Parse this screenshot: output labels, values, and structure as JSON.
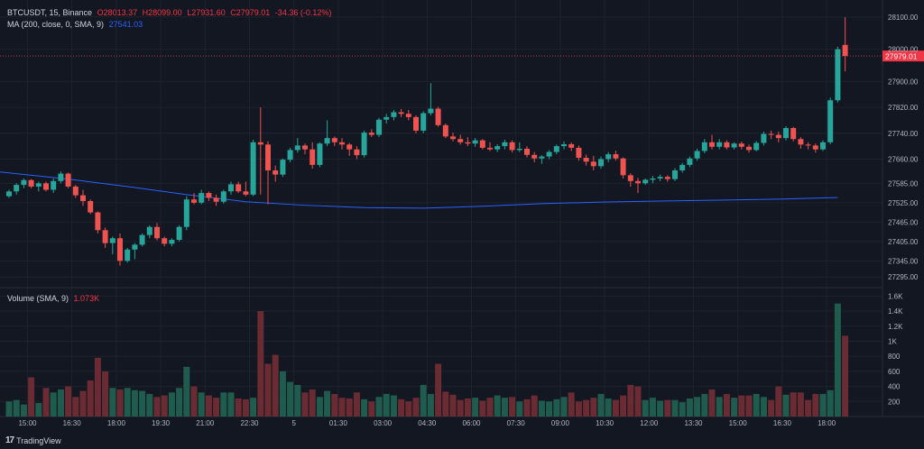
{
  "legend": {
    "symbol": "BTCUSDT, 15, Binance",
    "o": "O28013.37",
    "h": "H28099.00",
    "l": "L27931.60",
    "c": "C27979.01",
    "change": "-34.36 (-0.12%)",
    "ma_label": "MA (200, close, 0, SMA, 9)",
    "ma_value": "27541.03",
    "vol_label": "Volume (SMA, 9)",
    "vol_value": "1.073K"
  },
  "footer": {
    "logo_mark": "17",
    "brand": "TradingView"
  },
  "colors": {
    "up": "#26a69a",
    "down": "#ef5350",
    "ma": "#2962ff",
    "bg": "#131722",
    "grid": "#1e222d",
    "last_price_bg": "#f23645"
  },
  "chart_data": {
    "type": "candlestick",
    "price_axis": {
      "ticks": [
        28100,
        28000,
        27900,
        27820,
        27740,
        27660,
        27585,
        27525,
        27465,
        27405,
        27345,
        27295
      ],
      "tick_labels": [
        "28100.00",
        "28000.00",
        "27900.00",
        "27820.00",
        "27740.00",
        "27660.00",
        "27585.00",
        "27525.00",
        "27465.00",
        "27405.00",
        "27345.00",
        "27295.00"
      ],
      "last_price_label": "27979.01",
      "last_price": 27979.01
    },
    "volume_axis": {
      "ticks": [
        1600,
        1400,
        1200,
        1000,
        800,
        600,
        400,
        200
      ],
      "tick_labels": [
        "1.6K",
        "1.4K",
        "1.2K",
        "1K",
        "800",
        "600",
        "400",
        "200"
      ]
    },
    "time_axis": {
      "labels": [
        "15:00",
        "16:30",
        "18:00",
        "19:30",
        "21:00",
        "22:30",
        "5",
        "01:30",
        "03:00",
        "04:30",
        "06:00",
        "07:30",
        "09:00",
        "10:30",
        "12:00",
        "13:30",
        "15:00",
        "16:30",
        "18:00"
      ],
      "label_positions": [
        2.5,
        8.5,
        14.5,
        20.5,
        26.5,
        32.5,
        38.5,
        44.5,
        50.5,
        56.5,
        62.5,
        68.5,
        74.5,
        80.5,
        86.5,
        92.5,
        98.5,
        104.5,
        110.5
      ]
    },
    "ohlc": [
      [
        27545,
        27565,
        27540,
        27560
      ],
      [
        27560,
        27585,
        27550,
        27580
      ],
      [
        27580,
        27600,
        27570,
        27595
      ],
      [
        27595,
        27598,
        27570,
        27575
      ],
      [
        27575,
        27590,
        27560,
        27585
      ],
      [
        27585,
        27590,
        27560,
        27565
      ],
      [
        27565,
        27600,
        27555,
        27592
      ],
      [
        27592,
        27622,
        27585,
        27615
      ],
      [
        27615,
        27618,
        27570,
        27575
      ],
      [
        27575,
        27580,
        27540,
        27548
      ],
      [
        27548,
        27565,
        27515,
        27530
      ],
      [
        27530,
        27535,
        27490,
        27495
      ],
      [
        27495,
        27498,
        27430,
        27440
      ],
      [
        27440,
        27448,
        27385,
        27400
      ],
      [
        27400,
        27420,
        27365,
        27415
      ],
      [
        27415,
        27430,
        27330,
        27345
      ],
      [
        27345,
        27385,
        27340,
        27380
      ],
      [
        27380,
        27400,
        27350,
        27395
      ],
      [
        27395,
        27430,
        27390,
        27425
      ],
      [
        27425,
        27455,
        27415,
        27450
      ],
      [
        27450,
        27462,
        27408,
        27415
      ],
      [
        27415,
        27420,
        27390,
        27398
      ],
      [
        27398,
        27415,
        27390,
        27410
      ],
      [
        27410,
        27455,
        27405,
        27450
      ],
      [
        27450,
        27545,
        27440,
        27535
      ],
      [
        27535,
        27555,
        27520,
        27525
      ],
      [
        27525,
        27565,
        27520,
        27555
      ],
      [
        27555,
        27560,
        27530,
        27540
      ],
      [
        27540,
        27550,
        27515,
        27528
      ],
      [
        27528,
        27565,
        27522,
        27560
      ],
      [
        27560,
        27590,
        27550,
        27582
      ],
      [
        27582,
        27590,
        27555,
        27560
      ],
      [
        27560,
        27590,
        27545,
        27550
      ],
      [
        27550,
        27720,
        27545,
        27712
      ],
      [
        27712,
        27820,
        27550,
        27705
      ],
      [
        27705,
        27715,
        27520,
        27625
      ],
      [
        27625,
        27640,
        27590,
        27612
      ],
      [
        27612,
        27662,
        27605,
        27658
      ],
      [
        27658,
        27695,
        27650,
        27688
      ],
      [
        27688,
        27725,
        27680,
        27702
      ],
      [
        27702,
        27708,
        27675,
        27690
      ],
      [
        27690,
        27712,
        27630,
        27642
      ],
      [
        27642,
        27712,
        27635,
        27708
      ],
      [
        27708,
        27780,
        27700,
        27725
      ],
      [
        27725,
        27730,
        27700,
        27712
      ],
      [
        27712,
        27725,
        27690,
        27705
      ],
      [
        27705,
        27710,
        27670,
        27690
      ],
      [
        27690,
        27700,
        27660,
        27672
      ],
      [
        27672,
        27748,
        27665,
        27742
      ],
      [
        27742,
        27752,
        27728,
        27735
      ],
      [
        27735,
        27788,
        27728,
        27782
      ],
      [
        27782,
        27800,
        27770,
        27790
      ],
      [
        27790,
        27812,
        27780,
        27805
      ],
      [
        27805,
        27815,
        27790,
        27800
      ],
      [
        27800,
        27812,
        27780,
        27790
      ],
      [
        27790,
        27795,
        27740,
        27748
      ],
      [
        27748,
        27808,
        27740,
        27802
      ],
      [
        27802,
        27895,
        27795,
        27816
      ],
      [
        27816,
        27822,
        27760,
        27765
      ],
      [
        27765,
        27770,
        27725,
        27730
      ],
      [
        27730,
        27742,
        27715,
        27722
      ],
      [
        27722,
        27735,
        27705,
        27712
      ],
      [
        27712,
        27728,
        27700,
        27708
      ],
      [
        27708,
        27725,
        27698,
        27718
      ],
      [
        27718,
        27722,
        27690,
        27695
      ],
      [
        27695,
        27712,
        27685,
        27690
      ],
      [
        27690,
        27706,
        27682,
        27700
      ],
      [
        27700,
        27720,
        27690,
        27712
      ],
      [
        27712,
        27718,
        27680,
        27688
      ],
      [
        27688,
        27712,
        27682,
        27692
      ],
      [
        27692,
        27700,
        27665,
        27673
      ],
      [
        27673,
        27682,
        27650,
        27662
      ],
      [
        27662,
        27672,
        27645,
        27668
      ],
      [
        27668,
        27688,
        27660,
        27682
      ],
      [
        27682,
        27705,
        27675,
        27700
      ],
      [
        27700,
        27715,
        27690,
        27706
      ],
      [
        27706,
        27712,
        27685,
        27695
      ],
      [
        27695,
        27702,
        27655,
        27664
      ],
      [
        27664,
        27674,
        27640,
        27652
      ],
      [
        27652,
        27670,
        27625,
        27638
      ],
      [
        27638,
        27668,
        27630,
        27660
      ],
      [
        27660,
        27682,
        27650,
        27675
      ],
      [
        27675,
        27686,
        27655,
        27662
      ],
      [
        27662,
        27665,
        27600,
        27610
      ],
      [
        27610,
        27616,
        27575,
        27592
      ],
      [
        27592,
        27602,
        27555,
        27585
      ],
      [
        27585,
        27600,
        27580,
        27596
      ],
      [
        27596,
        27608,
        27585,
        27600
      ],
      [
        27600,
        27612,
        27592,
        27605
      ],
      [
        27605,
        27610,
        27590,
        27598
      ],
      [
        27598,
        27632,
        27592,
        27625
      ],
      [
        27625,
        27648,
        27618,
        27642
      ],
      [
        27642,
        27668,
        27635,
        27662
      ],
      [
        27662,
        27692,
        27655,
        27685
      ],
      [
        27685,
        27722,
        27678,
        27712
      ],
      [
        27712,
        27735,
        27690,
        27698
      ],
      [
        27698,
        27722,
        27690,
        27712
      ],
      [
        27712,
        27718,
        27690,
        27696
      ],
      [
        27696,
        27712,
        27690,
        27708
      ],
      [
        27708,
        27714,
        27690,
        27698
      ],
      [
        27698,
        27705,
        27680,
        27688
      ],
      [
        27688,
        27716,
        27684,
        27710
      ],
      [
        27710,
        27745,
        27702,
        27738
      ],
      [
        27738,
        27748,
        27722,
        27735
      ],
      [
        27735,
        27745,
        27712,
        27725
      ],
      [
        27725,
        27762,
        27718,
        27756
      ],
      [
        27756,
        27760,
        27715,
        27722
      ],
      [
        27722,
        27728,
        27692,
        27705
      ],
      [
        27705,
        27712,
        27690,
        27702
      ],
      [
        27702,
        27708,
        27680,
        27690
      ],
      [
        27690,
        27718,
        27685,
        27712
      ],
      [
        27712,
        27850,
        27706,
        27842
      ],
      [
        27842,
        28008,
        27835,
        28000
      ],
      [
        28013.37,
        28099,
        27931.6,
        27979.01
      ]
    ],
    "volume": [
      200,
      220,
      160,
      520,
      180,
      380,
      320,
      360,
      400,
      260,
      340,
      480,
      780,
      600,
      380,
      360,
      380,
      350,
      340,
      300,
      260,
      280,
      320,
      380,
      660,
      400,
      320,
      280,
      250,
      320,
      320,
      240,
      230,
      250,
      1400,
      700,
      820,
      600,
      460,
      420,
      320,
      360,
      260,
      340,
      300,
      250,
      240,
      320,
      230,
      200,
      260,
      300,
      280,
      230,
      200,
      250,
      420,
      300,
      700,
      330,
      290,
      220,
      240,
      250,
      210,
      250,
      280,
      250,
      260,
      200,
      230,
      280,
      210,
      200,
      230,
      260,
      320,
      200,
      220,
      250,
      300,
      240,
      220,
      280,
      420,
      400,
      220,
      250,
      210,
      220,
      220,
      190,
      240,
      260,
      300,
      360,
      260,
      300,
      250,
      280,
      280,
      300,
      260,
      220,
      400,
      290,
      320,
      320,
      220,
      300,
      300,
      350,
      1500,
      1073
    ],
    "ma_200": [
      [
        0,
        27620
      ],
      [
        8,
        27598
      ],
      [
        16,
        27575
      ],
      [
        24,
        27550
      ],
      [
        32,
        27528
      ],
      [
        40,
        27517
      ],
      [
        48,
        27510
      ],
      [
        56,
        27508
      ],
      [
        64,
        27514
      ],
      [
        72,
        27522
      ],
      [
        80,
        27527
      ],
      [
        88,
        27530
      ],
      [
        96,
        27533
      ],
      [
        104,
        27536
      ],
      [
        110,
        27540
      ],
      [
        112,
        27541.03
      ]
    ]
  }
}
